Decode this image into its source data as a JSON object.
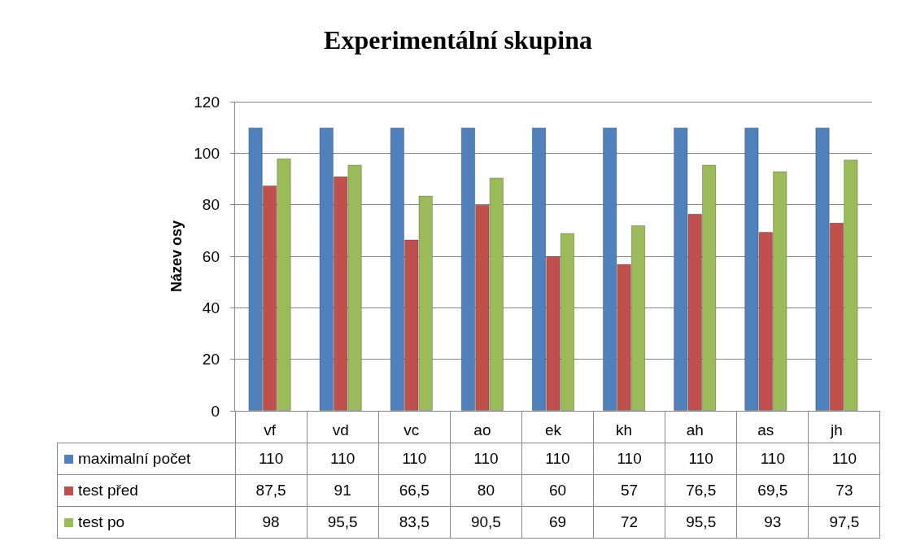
{
  "chart_data": {
    "type": "bar",
    "title": "Experimentální skupina",
    "ylabel": "Název osy",
    "categories": [
      "vf",
      "vd",
      "vc",
      "ao",
      "ek",
      "kh",
      "ah",
      "as",
      "jh"
    ],
    "series": [
      {
        "name": "maximalní počet",
        "color": "#4f81bd",
        "values": [
          110,
          110,
          110,
          110,
          110,
          110,
          110,
          110,
          110
        ],
        "value_labels": [
          "110",
          "110",
          "110",
          "110",
          "110",
          "110",
          "110",
          "110",
          "110"
        ]
      },
      {
        "name": "test před",
        "color": "#c0504d",
        "values": [
          87.5,
          91,
          66.5,
          80,
          60,
          57,
          76.5,
          69.5,
          73
        ],
        "value_labels": [
          "87,5",
          "91",
          "66,5",
          "80",
          "60",
          "57",
          "76,5",
          "69,5",
          "73"
        ]
      },
      {
        "name": "test po",
        "color": "#9bbb59",
        "values": [
          98,
          95.5,
          83.5,
          90.5,
          69,
          72,
          95.5,
          93,
          97.5
        ],
        "value_labels": [
          "98",
          "95,5",
          "83,5",
          "90,5",
          "69",
          "72",
          "95,5",
          "93",
          "97,5"
        ]
      }
    ],
    "ylim": [
      0,
      120
    ],
    "yticks": [
      0,
      20,
      40,
      60,
      80,
      100,
      120
    ],
    "grid": "y",
    "legend": "bottom"
  }
}
